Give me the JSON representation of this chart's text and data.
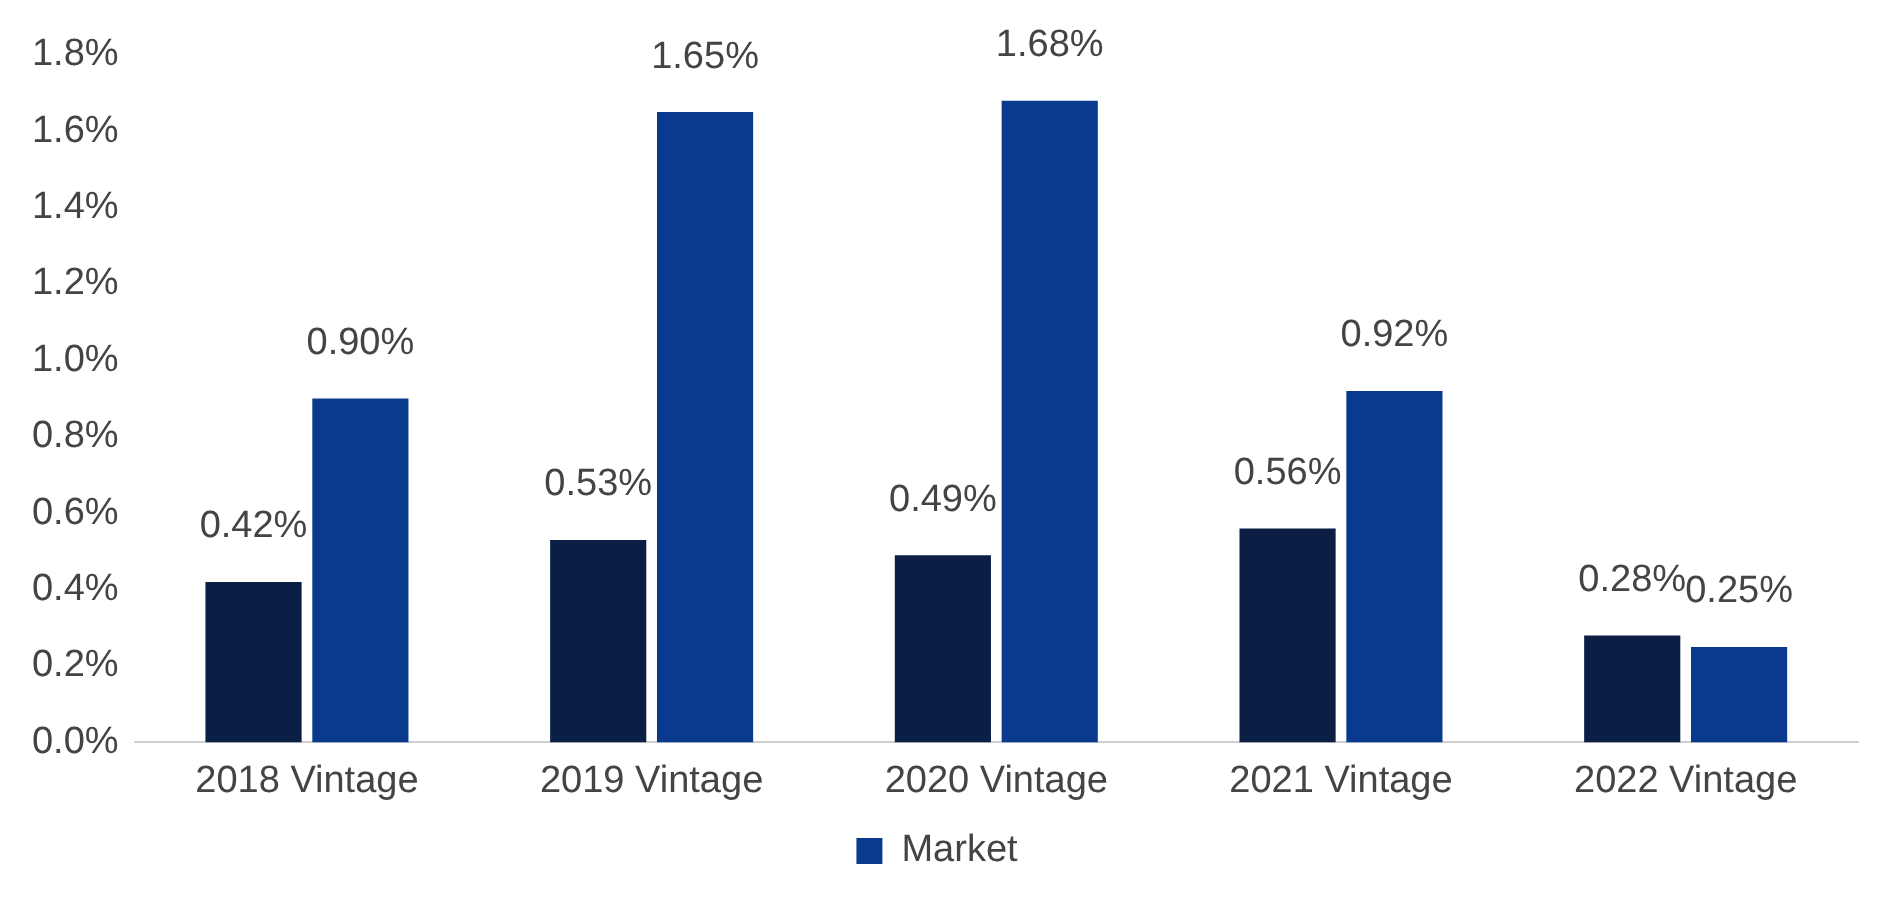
{
  "chart_data": {
    "type": "bar",
    "categories": [
      "2018 Vintage",
      "2019 Vintage",
      "2020 Vintage",
      "2021 Vintage",
      "2022 Vintage"
    ],
    "series": [
      {
        "color": "#0b1f45",
        "values": [
          0.42,
          0.53,
          0.49,
          0.56,
          0.28
        ],
        "value_labels": [
          "0.42%",
          "0.53%",
          "0.49%",
          "0.56%",
          "0.28%"
        ]
      },
      {
        "name": "Market",
        "color": "#0a3a8e",
        "values": [
          0.9,
          1.65,
          1.68,
          0.92,
          0.25
        ],
        "value_labels": [
          "0.90%",
          "1.65%",
          "1.68%",
          "0.92%",
          "0.25%"
        ]
      }
    ],
    "ylim": [
      0,
      1.8
    ],
    "yticks": [
      {
        "value": 0,
        "label": "0.0%"
      },
      {
        "value": 0.2,
        "label": "0.2%"
      },
      {
        "value": 0.4,
        "label": "0.4%"
      },
      {
        "value": 0.6,
        "label": "0.6%"
      },
      {
        "value": 0.8,
        "label": "0.8%"
      },
      {
        "value": 1.0,
        "label": "1.0%"
      },
      {
        "value": 1.2,
        "label": "1.2%"
      },
      {
        "value": 1.4,
        "label": "1.4%"
      },
      {
        "value": 1.6,
        "label": "1.6%"
      },
      {
        "value": 1.8,
        "label": "1.8%"
      }
    ],
    "grid": false,
    "legend": "bottom"
  }
}
